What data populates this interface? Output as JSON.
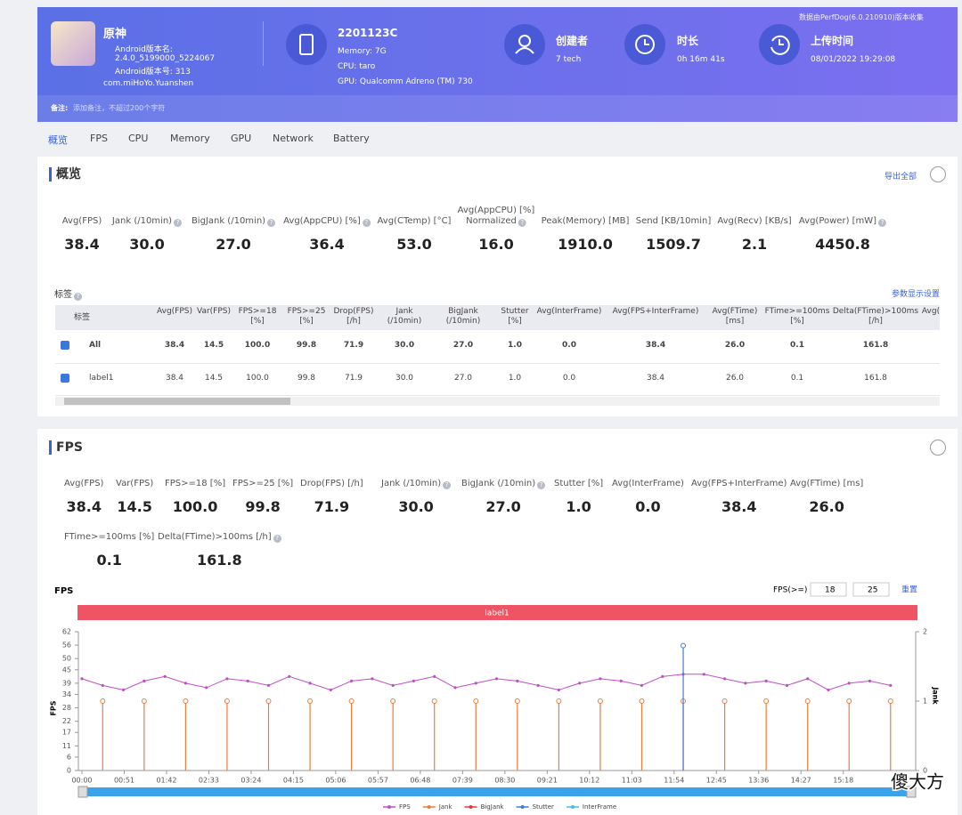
{
  "header": {
    "app_name": "原神",
    "android_version_name_label": "Android版本名:",
    "android_version_name": "2.4.0_5199000_5224067",
    "android_version_code": "Android版本号: 313",
    "package": "com.miHoYo.Yuanshen",
    "device": "2201123C",
    "memory": "Memory: 7G",
    "cpu": "CPU: taro",
    "gpu": "GPU: Qualcomm Adreno (TM) 730",
    "creator_label": "创建者",
    "creator": "7 tech",
    "duration_label": "时长",
    "duration": "0h 16m 41s",
    "upload_label": "上传时间",
    "upload_time": "08/01/2022 19:29:08",
    "source_note": "数据由PerfDog(6.0.210910)版本收集",
    "remark_label": "备注:",
    "remark_placeholder": "添加备注，不超过200个字符"
  },
  "tabs": [
    "概览",
    "FPS",
    "CPU",
    "Memory",
    "GPU",
    "Network",
    "Battery"
  ],
  "overview": {
    "title": "概览",
    "export": "导出全部",
    "stats": [
      {
        "label": "Avg(FPS)",
        "value": "38.4",
        "help": false
      },
      {
        "label": "Jank (/10min)",
        "value": "30.0",
        "help": true
      },
      {
        "label": "BigJank (/10min)",
        "value": "27.0",
        "help": true
      },
      {
        "label": "Avg(AppCPU) [%]",
        "value": "36.4",
        "help": true
      },
      {
        "label": "Avg(CTemp) [°C]",
        "value": "53.0",
        "help": false
      },
      {
        "label": "Avg(AppCPU) [%]\nNormalized",
        "value": "16.0",
        "help": true
      },
      {
        "label": "Peak(Memory) [MB]",
        "value": "1910.0",
        "help": false
      },
      {
        "label": "Send [KB/10min]",
        "value": "1509.7",
        "help": false
      },
      {
        "label": "Avg(Recv) [KB/s]",
        "value": "2.1",
        "help": false
      },
      {
        "label": "Avg(Power) [mW]",
        "value": "4450.8",
        "help": true
      }
    ]
  },
  "labels_table": {
    "title": "标签",
    "settings": "参数显示设置",
    "columns": [
      "标签",
      "Avg(FPS)",
      "Var(FPS)",
      "FPS>=18\n[%]",
      "FPS>=25\n[%]",
      "Drop(FPS)\n[/h]",
      "Jank\n(/10min)",
      "BigJank\n(/10min)",
      "Stutter\n[%]",
      "Avg(InterFrame)",
      "Avg(FPS+InterFrame)",
      "Avg(FTime)\n[ms]",
      "FTime>=100ms\n[%]",
      "Delta(FTime)>100ms\n[/h]",
      "Avg("
    ],
    "rows": [
      [
        "All",
        "38.4",
        "14.5",
        "100.0",
        "99.8",
        "71.9",
        "30.0",
        "27.0",
        "1.0",
        "0.0",
        "38.4",
        "26.0",
        "0.1",
        "161.8"
      ],
      [
        "label1",
        "38.4",
        "14.5",
        "100.0",
        "99.8",
        "71.9",
        "30.0",
        "27.0",
        "1.0",
        "0.0",
        "38.4",
        "26.0",
        "0.1",
        "161.8"
      ]
    ]
  },
  "fps_section": {
    "title": "FPS",
    "stats": [
      {
        "label": "Avg(FPS)",
        "value": "38.4",
        "help": false
      },
      {
        "label": "Var(FPS)",
        "value": "14.5",
        "help": false
      },
      {
        "label": "FPS>=18 [%]",
        "value": "100.0",
        "help": false
      },
      {
        "label": "FPS>=25 [%]",
        "value": "99.8",
        "help": false
      },
      {
        "label": "Drop(FPS) [/h]",
        "value": "71.9",
        "help": false
      },
      {
        "label": "Jank (/10min)",
        "value": "30.0",
        "help": true
      },
      {
        "label": "BigJank (/10min)",
        "value": "27.0",
        "help": true
      },
      {
        "label": "Stutter [%]",
        "value": "1.0",
        "help": false
      },
      {
        "label": "Avg(InterFrame)",
        "value": "0.0",
        "help": false
      },
      {
        "label": "Avg(FPS+InterFrame)",
        "value": "38.4",
        "help": false
      },
      {
        "label": "Avg(FTime) [ms]",
        "value": "26.0",
        "help": false
      },
      {
        "label": "FTime>=100ms [%]",
        "value": "0.1",
        "help": false
      },
      {
        "label": "Delta(FTime)>100ms [/h]",
        "value": "161.8",
        "help": true
      }
    ]
  },
  "fps_chart": {
    "threshold_label": "FPS(>=)",
    "thresholds": [
      "18",
      "25"
    ],
    "reset": "重置",
    "label_bar": "label1",
    "watermark": "傻大方"
  },
  "chart_data": {
    "type": "line",
    "title": "FPS",
    "ylabel": "FPS",
    "y2label": "Jank",
    "x": [
      0,
      25,
      50,
      75,
      100,
      125,
      150,
      175,
      200,
      225,
      250,
      275,
      300,
      325,
      350,
      375,
      400,
      425,
      450,
      475,
      500,
      525,
      550,
      575,
      600,
      625,
      650,
      675,
      700,
      725,
      750,
      775,
      800,
      825,
      850,
      875,
      900,
      925,
      950,
      975
    ],
    "xlim": [
      0,
      1001
    ],
    "xticks": [
      {
        "value": 0,
        "label": "00:00"
      },
      {
        "value": 51,
        "label": "00:51"
      },
      {
        "value": 102,
        "label": "01:42"
      },
      {
        "value": 153,
        "label": "02:33"
      },
      {
        "value": 204,
        "label": "03:24"
      },
      {
        "value": 255,
        "label": "04:15"
      },
      {
        "value": 306,
        "label": "05:06"
      },
      {
        "value": 357,
        "label": "05:57"
      },
      {
        "value": 408,
        "label": "06:48"
      },
      {
        "value": 459,
        "label": "07:39"
      },
      {
        "value": 510,
        "label": "08:30"
      },
      {
        "value": 561,
        "label": "09:21"
      },
      {
        "value": 612,
        "label": "10:12"
      },
      {
        "value": 663,
        "label": "11:03"
      },
      {
        "value": 714,
        "label": "11:54"
      },
      {
        "value": 765,
        "label": "12:45"
      },
      {
        "value": 816,
        "label": "13:36"
      },
      {
        "value": 867,
        "label": "14:27"
      },
      {
        "value": 918,
        "label": "15:18"
      }
    ],
    "ylim": [
      0,
      62
    ],
    "yticks": [
      0,
      6,
      11,
      17,
      22,
      28,
      34,
      39,
      45,
      50,
      56,
      62
    ],
    "y2lim": [
      0,
      2
    ],
    "y2ticks": [
      0,
      1,
      2
    ],
    "series": [
      {
        "name": "FPS",
        "color": "#c04fc6",
        "values": [
          41,
          38,
          36,
          40,
          42,
          39,
          37,
          41,
          40,
          38,
          42,
          39,
          36,
          40,
          41,
          38,
          40,
          42,
          37,
          39,
          41,
          40,
          38,
          36,
          39,
          41,
          40,
          38,
          42,
          43,
          43,
          41,
          39,
          40,
          38,
          41,
          36,
          39,
          40,
          38
        ]
      },
      {
        "name": "Jank",
        "color": "#f27b3a",
        "axis": "y2",
        "values": [
          0,
          1,
          0,
          1,
          0,
          1,
          0,
          1,
          0,
          1,
          0,
          1,
          0,
          1,
          0,
          1,
          0,
          1,
          0,
          1,
          0,
          1,
          0,
          1,
          0,
          1,
          0,
          1,
          0,
          1,
          0,
          1,
          0,
          1,
          0,
          1,
          0,
          1,
          0,
          1
        ]
      },
      {
        "name": "BigJank",
        "color": "#e0383e",
        "axis": "y2",
        "values": [
          0,
          0,
          0,
          0,
          0,
          0,
          0,
          0,
          0,
          0,
          0,
          0,
          0,
          0,
          0,
          0,
          0,
          0,
          0,
          0,
          0,
          0,
          0,
          0,
          0,
          0,
          0,
          0,
          0,
          0,
          0,
          0,
          0,
          0,
          0,
          0,
          0,
          0,
          0,
          0
        ]
      },
      {
        "name": "Stutter",
        "color": "#3b7be0",
        "axis": "y2",
        "values": [
          0,
          0,
          0,
          0,
          0,
          0,
          0,
          0,
          0,
          0,
          0,
          0,
          0,
          0,
          0,
          0,
          0,
          0,
          0,
          0,
          0,
          0,
          0,
          0,
          0,
          0,
          0,
          0,
          0,
          1.8,
          0,
          0,
          0,
          0,
          0,
          0,
          0,
          0,
          0,
          0
        ]
      },
      {
        "name": "InterFrame",
        "color": "#3cc0ea",
        "axis": "y2",
        "values": [
          0,
          0,
          0,
          0,
          0,
          0,
          0,
          0,
          0,
          0,
          0,
          0,
          0,
          0,
          0,
          0,
          0,
          0,
          0,
          0,
          0,
          0,
          0,
          0,
          0,
          0,
          0,
          0,
          0,
          0,
          0,
          0,
          0,
          0,
          0,
          0,
          0,
          0,
          0,
          0
        ]
      }
    ]
  }
}
